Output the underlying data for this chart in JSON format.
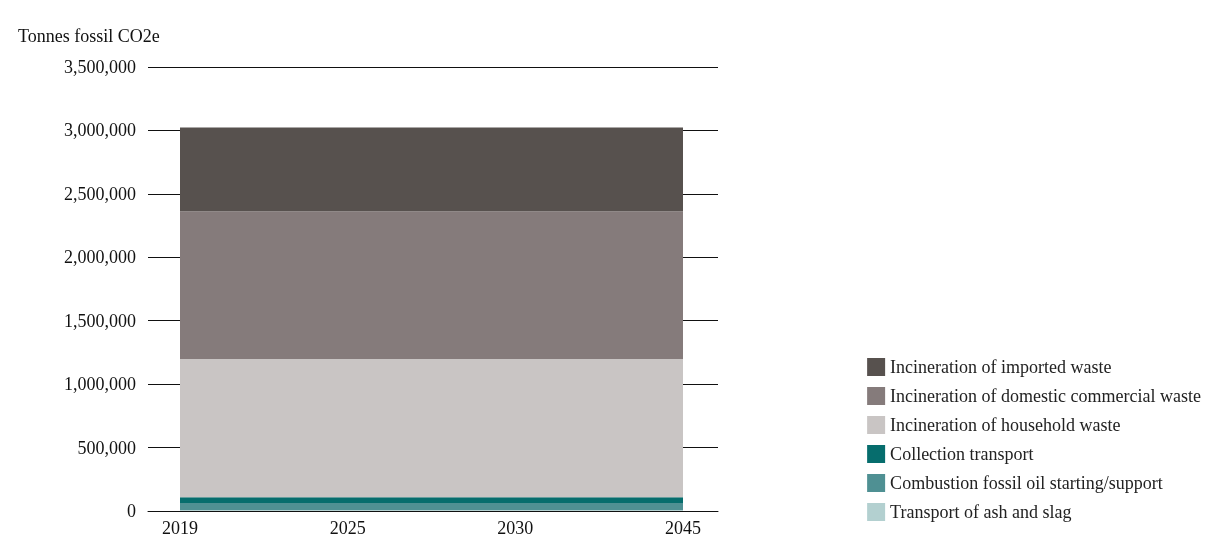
{
  "chart_data": {
    "type": "area",
    "stacked": true,
    "ylabel": "Tonnes fossil CO2e",
    "categories": [
      "2019",
      "2025",
      "2030",
      "2045"
    ],
    "series": [
      {
        "name": "Transport of ash and slag",
        "color": "#b3d0d0",
        "values": [
          8000,
          8000,
          8000,
          8000
        ]
      },
      {
        "name": "Combustion fossil oil starting/support",
        "color": "#4f9093",
        "values": [
          55000,
          55000,
          55000,
          55000
        ]
      },
      {
        "name": "Collection transport",
        "color": "#066d6d",
        "values": [
          45000,
          45000,
          45000,
          45000
        ]
      },
      {
        "name": "Incineration of household waste",
        "color": "#c9c5c4",
        "values": [
          1090000,
          1090000,
          1090000,
          1090000
        ]
      },
      {
        "name": "Incineration of domestic commercial waste",
        "color": "#857b7b",
        "values": [
          1165000,
          1165000,
          1165000,
          1165000
        ]
      },
      {
        "name": "Incineration of imported waste",
        "color": "#57514e",
        "values": [
          660000,
          660000,
          660000,
          660000
        ]
      }
    ],
    "ylim": [
      0,
      3500000
    ],
    "yticks": [
      0,
      {
        "value": 500000,
        "label": "500,000"
      },
      {
        "value": 1000000,
        "label": "1,000,000"
      },
      {
        "value": 1500000,
        "label": "1,500,000"
      },
      {
        "value": 2000000,
        "label": "2,000,000"
      },
      {
        "value": 2500000,
        "label": "2,500,000"
      },
      {
        "value": 3000000,
        "label": "3,000,000"
      },
      {
        "value": 3500000,
        "label": "3,500,000"
      }
    ],
    "grid": "y",
    "legend": "right"
  }
}
